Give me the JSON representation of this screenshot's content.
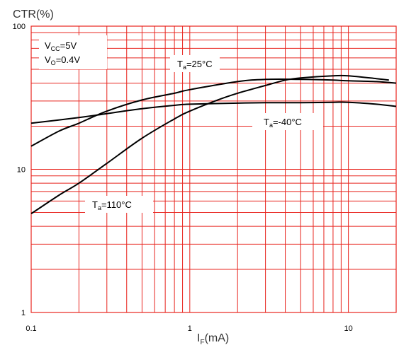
{
  "chart_data": {
    "type": "line",
    "title": "",
    "ylabel": "CTR(%)",
    "xlabel_main": "I",
    "xlabel_sub": "F",
    "xlabel_unit": "(mA)",
    "xscale": "log",
    "yscale": "log",
    "xlim": [
      0.1,
      20
    ],
    "ylim": [
      1,
      100
    ],
    "grid": true,
    "x_ticks": [
      {
        "value": 0.1,
        "label": "0.1"
      },
      {
        "value": 1,
        "label": "1"
      },
      {
        "value": 10,
        "label": "10"
      }
    ],
    "y_ticks": [
      {
        "value": 1,
        "label": "1"
      },
      {
        "value": 10,
        "label": "10"
      },
      {
        "value": 100,
        "label": "100"
      }
    ],
    "conditions": [
      {
        "main": "V",
        "sub": "CC",
        "rest": "=5V"
      },
      {
        "main": "V",
        "sub": "O",
        "rest": "=0.4V"
      }
    ],
    "series": [
      {
        "name": "Ta=25°C",
        "label_main": "T",
        "label_sub": "a",
        "label_rest": "=25°C",
        "x": [
          0.1,
          0.15,
          0.2,
          0.3,
          0.5,
          0.8,
          1,
          2,
          3,
          5,
          8,
          10,
          15,
          20
        ],
        "y": [
          14.5,
          18.5,
          21,
          25.5,
          30.5,
          34,
          36,
          41,
          42.5,
          42.5,
          42,
          41.5,
          41,
          40
        ]
      },
      {
        "name": "Ta=-40°C",
        "label_main": "T",
        "label_sub": "a",
        "label_rest": "=-40°C",
        "x": [
          0.1,
          0.2,
          0.3,
          0.5,
          0.8,
          1,
          2,
          3,
          5,
          8,
          10,
          15,
          20
        ],
        "y": [
          21,
          23,
          24.5,
          26.5,
          28,
          28.5,
          29,
          29.2,
          29.2,
          29.4,
          29.4,
          28.5,
          27.5
        ]
      },
      {
        "name": "Ta=110°C",
        "label_main": "T",
        "label_sub": "a",
        "label_rest": "=110°C",
        "x": [
          0.1,
          0.15,
          0.2,
          0.3,
          0.5,
          0.8,
          1,
          1.5,
          2,
          3,
          4,
          5,
          8,
          10,
          15,
          18
        ],
        "y": [
          4.9,
          6.6,
          8,
          11,
          16.5,
          22.5,
          25.5,
          30.5,
          34,
          38.5,
          42,
          43.5,
          45,
          45,
          43,
          42
        ]
      }
    ]
  }
}
